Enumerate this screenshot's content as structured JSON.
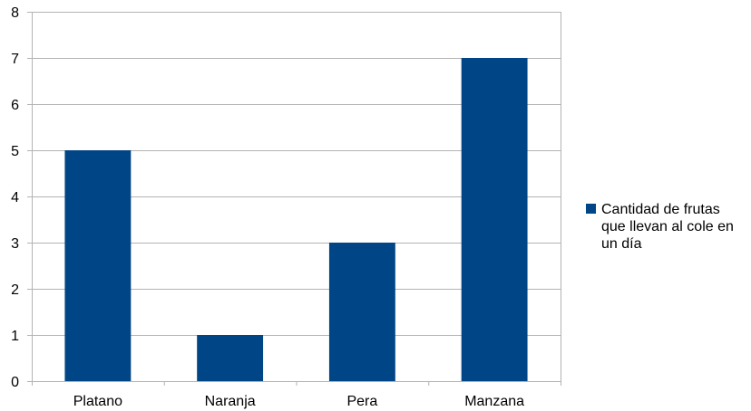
{
  "chart_data": {
    "type": "bar",
    "categories": [
      "Platano",
      "Naranja",
      "Pera",
      "Manzana"
    ],
    "series": [
      {
        "name": "Cantidad de frutas que llevan al cole en un día",
        "values": [
          5,
          1,
          3,
          7
        ],
        "color": "#004586"
      }
    ],
    "ylim": [
      0,
      8
    ],
    "yticks": [
      0,
      1,
      2,
      3,
      4,
      5,
      6,
      7,
      8
    ],
    "grid": true,
    "legend": "right",
    "title": "",
    "xlabel": "",
    "ylabel": ""
  }
}
